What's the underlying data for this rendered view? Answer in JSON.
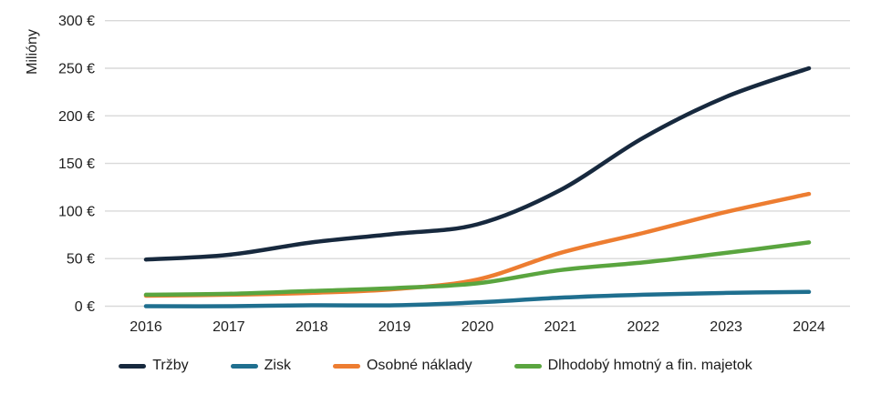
{
  "chart_data": {
    "type": "line",
    "title": "",
    "ylabel": "Milióny",
    "xlabel": "",
    "categories": [
      "2016",
      "2017",
      "2018",
      "2019",
      "2020",
      "2021",
      "2022",
      "2023",
      "2024"
    ],
    "series": [
      {
        "name": "Tržby",
        "color": "#17293e",
        "values": [
          49,
          54,
          67,
          76,
          86,
          122,
          177,
          220,
          250
        ]
      },
      {
        "name": "Zisk",
        "color": "#1f6f8f",
        "values": [
          0,
          0,
          1,
          1,
          4,
          9,
          12,
          14,
          15
        ]
      },
      {
        "name": "Osobné náklady",
        "color": "#ed7d31",
        "values": [
          11,
          12,
          14,
          18,
          28,
          56,
          77,
          99,
          118
        ]
      },
      {
        "name": "Dlhodobý hmotný a fin. majetok",
        "color": "#5aa53f",
        "values": [
          12,
          13,
          16,
          19,
          24,
          38,
          46,
          56,
          67
        ]
      }
    ],
    "ylim": [
      0,
      300
    ],
    "ytick_step": 50,
    "ytick_labels": [
      "0 €",
      "50 €",
      "100 €",
      "150 €",
      "200 €",
      "250 €",
      "300 €"
    ],
    "grid": true,
    "legend_position": "bottom",
    "line_style": "smooth"
  },
  "colors": {
    "grid": "#d9d9d9",
    "text": "#212121",
    "background": "#ffffff"
  }
}
